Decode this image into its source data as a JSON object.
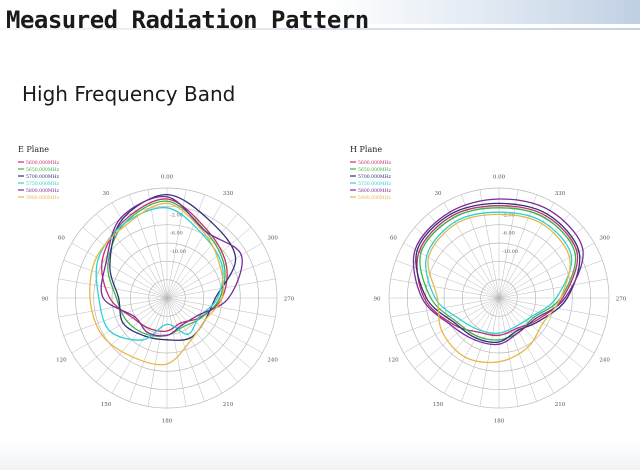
{
  "slide": {
    "title": "Measured Radiation Pattern",
    "subtitle": "High Frequency Band"
  },
  "colors": {
    "grid": "#b9b9b9",
    "series": [
      "#c0306a",
      "#3cb44a",
      "#30307a",
      "#2fd0d8",
      "#7a2a9a",
      "#e6b84a"
    ]
  },
  "chart_data": [
    {
      "type": "line",
      "coordinate_system": "polar",
      "title": "E Plane",
      "angle_labels": [
        {
          "deg": 0,
          "text": "0.00"
        },
        {
          "deg": 30,
          "text": "330"
        },
        {
          "deg": 60,
          "text": "300"
        },
        {
          "deg": 90,
          "text": "270"
        },
        {
          "deg": 120,
          "text": "240"
        },
        {
          "deg": 150,
          "text": "210"
        },
        {
          "deg": 180,
          "text": "180"
        },
        {
          "deg": 210,
          "text": "150"
        },
        {
          "deg": 240,
          "text": "120"
        },
        {
          "deg": 270,
          "text": "90"
        },
        {
          "deg": 300,
          "text": "60"
        },
        {
          "deg": 330,
          "text": "30"
        }
      ],
      "radial_labels": [
        "-2.00",
        "-6.00",
        "-10.00"
      ],
      "radial_ring_count": 6,
      "angles_deg": [
        0,
        30,
        60,
        90,
        120,
        150,
        180,
        210,
        240,
        270,
        300,
        330
      ],
      "legend_position": "top-left",
      "series": [
        {
          "name": "5600.000MHz",
          "values": [
            0.9,
            0.72,
            0.62,
            0.5,
            0.35,
            0.26,
            0.3,
            0.32,
            0.36,
            0.52,
            0.68,
            0.8
          ]
        },
        {
          "name": "5650.000MHz",
          "values": [
            0.88,
            0.7,
            0.6,
            0.48,
            0.36,
            0.3,
            0.34,
            0.38,
            0.42,
            0.46,
            0.62,
            0.78
          ]
        },
        {
          "name": "5700.000MHz",
          "values": [
            0.94,
            0.8,
            0.72,
            0.44,
            0.4,
            0.42,
            0.38,
            0.4,
            0.46,
            0.44,
            0.6,
            0.82
          ]
        },
        {
          "name": "5750.000MHz",
          "values": [
            0.82,
            0.66,
            0.58,
            0.46,
            0.34,
            0.38,
            0.24,
            0.44,
            0.6,
            0.62,
            0.72,
            0.78
          ]
        },
        {
          "name": "5800.000MHz",
          "values": [
            0.92,
            0.7,
            0.78,
            0.56,
            0.32,
            0.28,
            0.34,
            0.36,
            0.34,
            0.58,
            0.64,
            0.84
          ]
        },
        {
          "name": "5900.000MHz",
          "values": [
            0.86,
            0.68,
            0.56,
            0.5,
            0.4,
            0.44,
            0.6,
            0.62,
            0.68,
            0.7,
            0.74,
            0.76
          ]
        }
      ]
    },
    {
      "type": "line",
      "coordinate_system": "polar",
      "title": "H Plane",
      "angle_labels": [
        {
          "deg": 0,
          "text": "0.00"
        },
        {
          "deg": 30,
          "text": "330"
        },
        {
          "deg": 60,
          "text": "300"
        },
        {
          "deg": 90,
          "text": "270"
        },
        {
          "deg": 120,
          "text": "240"
        },
        {
          "deg": 150,
          "text": "210"
        },
        {
          "deg": 180,
          "text": "180"
        },
        {
          "deg": 210,
          "text": "150"
        },
        {
          "deg": 240,
          "text": "120"
        },
        {
          "deg": 270,
          "text": "90"
        },
        {
          "deg": 300,
          "text": "60"
        },
        {
          "deg": 330,
          "text": "30"
        }
      ],
      "radial_labels": [
        "-2.00",
        "-6.00",
        "-10.00"
      ],
      "radial_ring_count": 6,
      "angles_deg": [
        0,
        30,
        60,
        90,
        120,
        150,
        180,
        210,
        240,
        270,
        300,
        330
      ],
      "legend_position": "top-left",
      "series": [
        {
          "name": "5600.000MHz",
          "values": [
            0.84,
            0.86,
            0.82,
            0.58,
            0.4,
            0.32,
            0.34,
            0.36,
            0.48,
            0.68,
            0.84,
            0.86
          ]
        },
        {
          "name": "5650.000MHz",
          "values": [
            0.82,
            0.84,
            0.8,
            0.56,
            0.36,
            0.36,
            0.38,
            0.4,
            0.44,
            0.62,
            0.82,
            0.84
          ]
        },
        {
          "name": "5700.000MHz",
          "values": [
            0.86,
            0.88,
            0.84,
            0.62,
            0.42,
            0.34,
            0.4,
            0.42,
            0.46,
            0.66,
            0.86,
            0.88
          ]
        },
        {
          "name": "5750.000MHz",
          "values": [
            0.78,
            0.8,
            0.76,
            0.52,
            0.34,
            0.3,
            0.32,
            0.34,
            0.4,
            0.58,
            0.76,
            0.8
          ]
        },
        {
          "name": "5800.000MHz",
          "values": [
            0.9,
            0.92,
            0.88,
            0.6,
            0.38,
            0.36,
            0.42,
            0.44,
            0.5,
            0.7,
            0.88,
            0.9
          ]
        },
        {
          "name": "5900.000MHz",
          "values": [
            0.76,
            0.78,
            0.74,
            0.56,
            0.46,
            0.52,
            0.58,
            0.62,
            0.6,
            0.56,
            0.74,
            0.78
          ]
        }
      ]
    }
  ]
}
